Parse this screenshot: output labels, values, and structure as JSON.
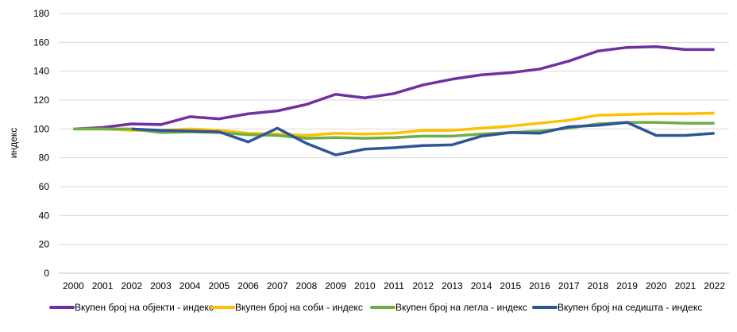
{
  "chart_data": {
    "type": "line",
    "title": "",
    "xlabel": "",
    "ylabel": "индекс",
    "ylim": [
      0,
      180
    ],
    "yticks": [
      0,
      20,
      40,
      60,
      80,
      100,
      120,
      140,
      160,
      180
    ],
    "grid": true,
    "legend_position": "bottom",
    "x": [
      "2000",
      "2001",
      "2002",
      "2003",
      "2004",
      "2005",
      "2006",
      "2007",
      "2008",
      "2009",
      "2010",
      "2011",
      "2012",
      "2013",
      "2014",
      "2015",
      "2016",
      "2017",
      "2018",
      "2019",
      "2020",
      "2021",
      "2022"
    ],
    "series": [
      {
        "name": "Вкупен број на објекти - индекс",
        "color": "#7030a0",
        "values": [
          100,
          101,
          103.5,
          103,
          108.5,
          107,
          110.5,
          112.5,
          117,
          124,
          121.5,
          124.5,
          130.5,
          134.5,
          137.5,
          139,
          141.5,
          147,
          154,
          156.5,
          157,
          155,
          155
        ]
      },
      {
        "name": "Вкупен број на соби  - индекс",
        "color": "#ffc000",
        "values": [
          100,
          100,
          99,
          99,
          100,
          99,
          97,
          96.5,
          95.5,
          97,
          96.5,
          97,
          99,
          99,
          100.5,
          102,
          104,
          106,
          109.5,
          110,
          110.5,
          110.5,
          111
        ]
      },
      {
        "name": "Вкупен број на легла  - индекс",
        "color": "#70ad47",
        "values": [
          100,
          100,
          100,
          97.5,
          98,
          97.5,
          96,
          95.5,
          93.5,
          94,
          93.5,
          94,
          95,
          95,
          96.5,
          97.5,
          98.5,
          100.5,
          103.5,
          104.5,
          104.5,
          104,
          104
        ]
      },
      {
        "name": "Вкупен број на седишта  - индекс",
        "color": "#2f5597",
        "values": [
          null,
          null,
          100,
          99,
          98.5,
          98,
          91,
          100.5,
          90,
          82,
          86,
          87,
          88.5,
          89,
          95,
          97.5,
          97,
          101.5,
          102.5,
          104.5,
          95.5,
          95.5,
          97
        ]
      }
    ]
  }
}
